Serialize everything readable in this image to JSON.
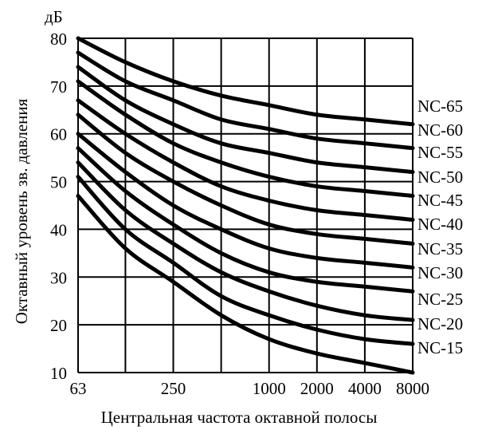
{
  "chart_data": {
    "type": "line",
    "title": "",
    "unit_label": "дБ",
    "xlabel": "Центральная частота октавной полосы",
    "ylabel": "Октавный уровень зв. давления",
    "x": [
      63,
      125,
      250,
      500,
      1000,
      2000,
      4000,
      8000
    ],
    "x_scale": "log2",
    "x_tick_labels": [
      "63",
      "250",
      "1000",
      "2000",
      "4000",
      "8000"
    ],
    "x_tick_values": [
      63,
      250,
      1000,
      2000,
      4000,
      8000
    ],
    "ylim": [
      10,
      80
    ],
    "y_ticks": [
      10,
      20,
      30,
      40,
      50,
      60,
      70,
      80
    ],
    "grid": true,
    "series": [
      {
        "name": "NC-65",
        "values": [
          80,
          75,
          71,
          68,
          66,
          64,
          63,
          62
        ]
      },
      {
        "name": "NC-60",
        "values": [
          77,
          71,
          67,
          63,
          61,
          59,
          58,
          57
        ]
      },
      {
        "name": "NC-55",
        "values": [
          74,
          67,
          62,
          58,
          56,
          54,
          53,
          52
        ]
      },
      {
        "name": "NC-50",
        "values": [
          71,
          64,
          58,
          54,
          51,
          49,
          48,
          47
        ]
      },
      {
        "name": "NC-45",
        "values": [
          67,
          60,
          54,
          49,
          46,
          44,
          43,
          42
        ]
      },
      {
        "name": "NC-40",
        "values": [
          64,
          56,
          50,
          45,
          41,
          39,
          38,
          37
        ]
      },
      {
        "name": "NC-35",
        "values": [
          60,
          52,
          45,
          40,
          36,
          34,
          33,
          32
        ]
      },
      {
        "name": "NC-30",
        "values": [
          57,
          48,
          41,
          35,
          31,
          29,
          28,
          27
        ]
      },
      {
        "name": "NC-25",
        "values": [
          54,
          44,
          37,
          31,
          27,
          24,
          22,
          21
        ]
      },
      {
        "name": "NC-20",
        "values": [
          51,
          40,
          33,
          26,
          22,
          19,
          17,
          16
        ]
      },
      {
        "name": "NC-15",
        "values": [
          47,
          36,
          29,
          22,
          17,
          14,
          12,
          10
        ]
      }
    ]
  }
}
